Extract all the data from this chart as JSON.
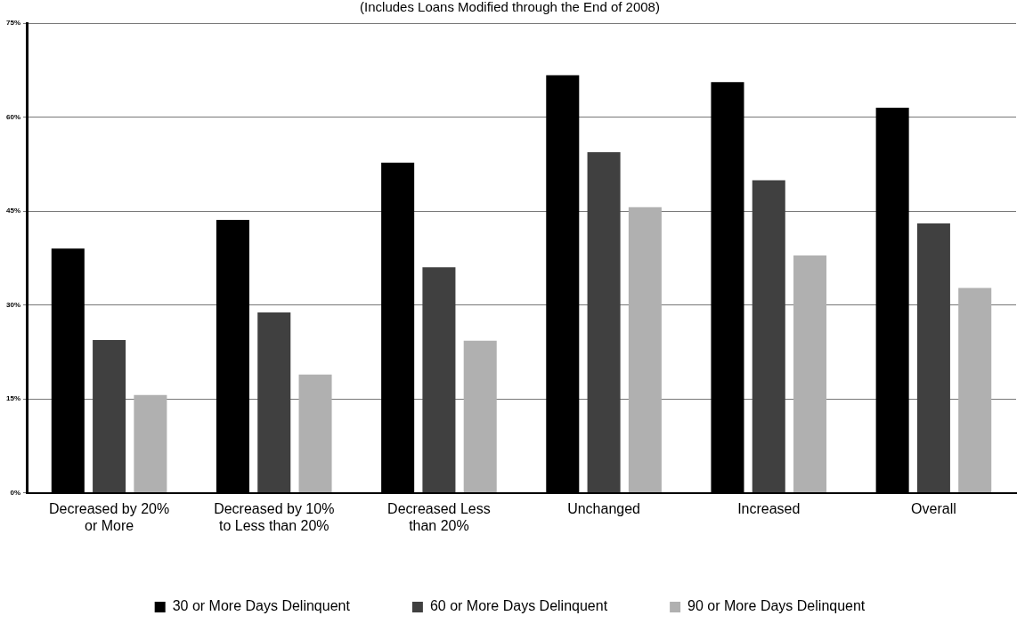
{
  "chart_data": {
    "type": "bar",
    "subtitle": "(Includes Loans Modified through the End of 2008)",
    "categories": [
      "Decreased by 20% or More",
      "Decreased by 10% to Less than 20%",
      "Decreased Less than 20%",
      "Unchanged",
      "Increased",
      "Overall"
    ],
    "series": [
      {
        "name": "30 or More Days Delinquent",
        "color": "#000000",
        "values": [
          39.0,
          43.6,
          52.7,
          66.7,
          65.6,
          61.5
        ]
      },
      {
        "name": "60 or More Days Delinquent",
        "color": "#404040",
        "values": [
          24.4,
          28.8,
          36.0,
          54.4,
          49.9,
          43.0
        ]
      },
      {
        "name": "90 or More Days Delinquent",
        "color": "#b0b0b0",
        "values": [
          15.6,
          18.9,
          24.3,
          45.6,
          37.9,
          32.7
        ]
      }
    ],
    "ylim": [
      0,
      75
    ],
    "yticks": [
      {
        "value": 0,
        "label": "0%"
      },
      {
        "value": 15,
        "label": "15%"
      },
      {
        "value": 30,
        "label": "30%"
      },
      {
        "value": 45,
        "label": "45%"
      },
      {
        "value": 60,
        "label": "60%"
      },
      {
        "value": 75,
        "label": "75%"
      }
    ],
    "grid": "y",
    "legend": "bottom"
  }
}
